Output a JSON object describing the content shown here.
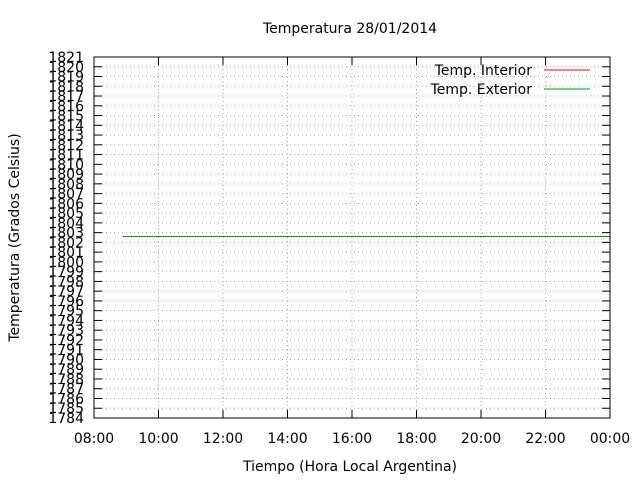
{
  "chart_data": {
    "type": "line",
    "title": "Temperatura 28/01/2014",
    "xlabel": "Tiempo (Hora Local Argentina)",
    "ylabel": "Temperatura (Grados Celsius)",
    "xlim": [
      "08:00",
      "00:00"
    ],
    "ylim": [
      1784,
      1821
    ],
    "x_ticks": [
      "08:00",
      "10:00",
      "12:00",
      "14:00",
      "16:00",
      "18:00",
      "20:00",
      "22:00",
      "00:00"
    ],
    "y_ticks": [
      1784,
      1785,
      1786,
      1787,
      1788,
      1789,
      1790,
      1791,
      1792,
      1793,
      1794,
      1795,
      1796,
      1797,
      1798,
      1799,
      1800,
      1801,
      1802,
      1803,
      1804,
      1805,
      1806,
      1807,
      1808,
      1809,
      1810,
      1811,
      1812,
      1813,
      1814,
      1815,
      1816,
      1817,
      1818,
      1819,
      1820,
      1821
    ],
    "grid": true,
    "legend_position": "top-right",
    "series": [
      {
        "name": "Temp. Interior",
        "color": "#ff0000",
        "x": [],
        "y": []
      },
      {
        "name": "Temp. Exterior",
        "color": "#00a000",
        "x": [
          "08:53",
          "00:00"
        ],
        "y": [
          1802.6,
          1802.6
        ]
      }
    ]
  }
}
